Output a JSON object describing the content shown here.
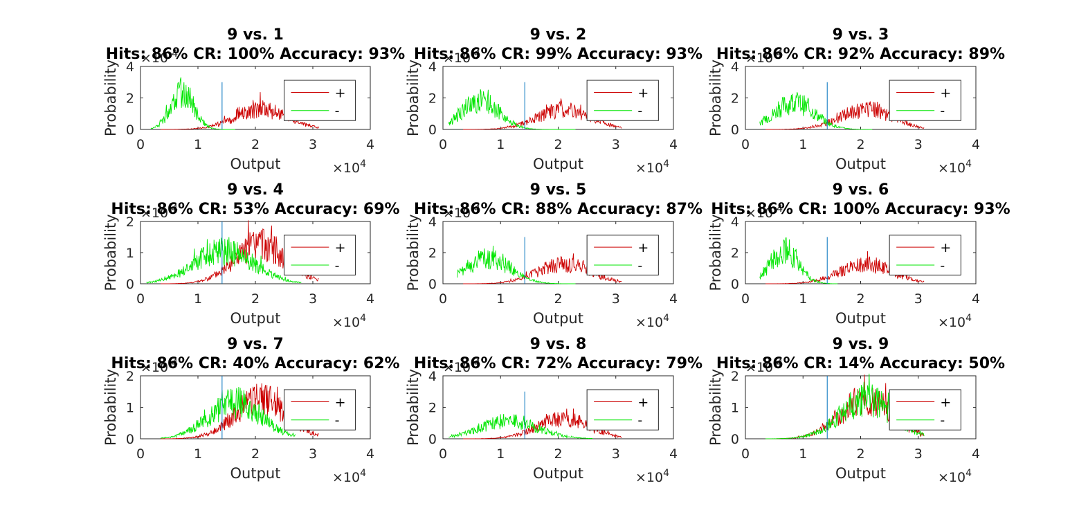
{
  "figure": {
    "background": "#ffffff",
    "axis_color": "#262626",
    "hits_color": "#cc0000",
    "cr_color": "#00e600",
    "criterion_color": "#0072bd"
  },
  "chart_data": [
    {
      "type": "line",
      "title": "9 vs. 1",
      "subtitle": "Hits: 86% CR: 100% Accuracy: 93%",
      "xlabel": "Output",
      "ylabel": "Probability",
      "x_exponent_label": "×10",
      "x_exponent": "4",
      "y_exponent_label": "×10",
      "y_exponent": "-4",
      "xlim": [
        0,
        40000
      ],
      "ylim": [
        0,
        0.0004
      ],
      "xticks": [
        "0",
        "1",
        "2",
        "3",
        "4"
      ],
      "yticks": [
        "0",
        "2",
        "4"
      ],
      "criterion": 14200,
      "criterion_top": 0.0003,
      "legend": {
        "position": "top-right",
        "entries": [
          "+",
          "-"
        ]
      },
      "series": [
        {
          "name": "+",
          "center": 21000,
          "sigma": 4600,
          "peak": 0.000125,
          "xmin": 3500,
          "xmax": 31000,
          "seed": 11
        },
        {
          "name": "-",
          "center": 7300,
          "sigma": 2000,
          "peak": 0.000235,
          "xmin": 1800,
          "xmax": 16500,
          "seed": 12
        }
      ]
    },
    {
      "type": "line",
      "title": "9 vs. 2",
      "subtitle": "Hits: 86% CR: 99% Accuracy: 93%",
      "xlabel": "Output",
      "ylabel": "Probability",
      "x_exponent_label": "×10",
      "x_exponent": "4",
      "y_exponent_label": "×10",
      "y_exponent": "-4",
      "xlim": [
        0,
        40000
      ],
      "ylim": [
        0,
        0.0004
      ],
      "xticks": [
        "0",
        "1",
        "2",
        "3",
        "4"
      ],
      "yticks": [
        "0",
        "2",
        "4"
      ],
      "criterion": 14200,
      "criterion_top": 0.0003,
      "legend": {
        "position": "top-right",
        "entries": [
          "+",
          "-"
        ]
      },
      "series": [
        {
          "name": "+",
          "center": 21000,
          "sigma": 4600,
          "peak": 0.000125,
          "xmin": 3500,
          "xmax": 31000,
          "seed": 21
        },
        {
          "name": "-",
          "center": 6500,
          "sigma": 3200,
          "peak": 0.00018,
          "xmin": 1000,
          "xmax": 23000,
          "seed": 22
        }
      ]
    },
    {
      "type": "line",
      "title": "9 vs. 3",
      "subtitle": "Hits: 86% CR: 92% Accuracy: 89%",
      "xlabel": "Output",
      "ylabel": "Probability",
      "x_exponent_label": "×10",
      "x_exponent": "4",
      "y_exponent_label": "×10",
      "y_exponent": "-4",
      "xlim": [
        0,
        40000
      ],
      "ylim": [
        0,
        0.0004
      ],
      "xticks": [
        "0",
        "1",
        "2",
        "3",
        "4"
      ],
      "yticks": [
        "0",
        "2",
        "4"
      ],
      "criterion": 14200,
      "criterion_top": 0.0003,
      "legend": {
        "position": "top-right",
        "entries": [
          "+",
          "-"
        ]
      },
      "series": [
        {
          "name": "+",
          "center": 21000,
          "sigma": 4600,
          "peak": 0.000125,
          "xmin": 3500,
          "xmax": 31000,
          "seed": 31
        },
        {
          "name": "-",
          "center": 8500,
          "sigma": 3500,
          "peak": 0.00017,
          "xmin": 2500,
          "xmax": 22000,
          "seed": 32
        }
      ]
    },
    {
      "type": "line",
      "title": "9 vs. 4",
      "subtitle": "Hits: 86% CR: 53% Accuracy: 69%",
      "xlabel": "Output",
      "ylabel": "Probability",
      "x_exponent_label": "×10",
      "x_exponent": "4",
      "y_exponent_label": "×10",
      "y_exponent": "-4",
      "xlim": [
        0,
        40000
      ],
      "ylim": [
        0,
        0.0002
      ],
      "xticks": [
        "0",
        "1",
        "2",
        "3",
        "4"
      ],
      "yticks": [
        "0",
        "1",
        "2"
      ],
      "criterion": 14200,
      "criterion_top": 0.0002,
      "legend": {
        "position": "top-right",
        "entries": [
          "+",
          "-"
        ]
      },
      "series": [
        {
          "name": "+",
          "center": 21000,
          "sigma": 4600,
          "peak": 0.000125,
          "xmin": 3500,
          "xmax": 31000,
          "seed": 41
        },
        {
          "name": "-",
          "center": 14500,
          "sigma": 5200,
          "peak": 0.000105,
          "xmin": 1000,
          "xmax": 28000,
          "seed": 42
        }
      ]
    },
    {
      "type": "line",
      "title": "9 vs. 5",
      "subtitle": "Hits: 86% CR: 88% Accuracy: 87%",
      "xlabel": "Output",
      "ylabel": "Probability",
      "x_exponent_label": "×10",
      "x_exponent": "4",
      "y_exponent_label": "×10",
      "y_exponent": "-4",
      "xlim": [
        0,
        40000
      ],
      "ylim": [
        0,
        0.0004
      ],
      "xticks": [
        "0",
        "1",
        "2",
        "3",
        "4"
      ],
      "yticks": [
        "0",
        "2",
        "4"
      ],
      "criterion": 14200,
      "criterion_top": 0.0003,
      "legend": {
        "position": "top-right",
        "entries": [
          "+",
          "-"
        ]
      },
      "series": [
        {
          "name": "+",
          "center": 21000,
          "sigma": 4600,
          "peak": 0.000125,
          "xmin": 3500,
          "xmax": 31000,
          "seed": 51
        },
        {
          "name": "-",
          "center": 8000,
          "sigma": 3800,
          "peak": 0.00016,
          "xmin": 2500,
          "xmax": 23000,
          "seed": 52
        }
      ]
    },
    {
      "type": "line",
      "title": "9 vs. 6",
      "subtitle": "Hits: 86% CR: 100% Accuracy: 93%",
      "xlabel": "Output",
      "ylabel": "Probability",
      "x_exponent_label": "×10",
      "x_exponent": "4",
      "y_exponent_label": "×10",
      "y_exponent": "-4",
      "xlim": [
        0,
        40000
      ],
      "ylim": [
        0,
        0.0004
      ],
      "xticks": [
        "0",
        "1",
        "2",
        "3",
        "4"
      ],
      "yticks": [
        "0",
        "2",
        "4"
      ],
      "criterion": 14200,
      "criterion_top": 0.0003,
      "legend": {
        "position": "top-right",
        "entries": [
          "+",
          "-"
        ]
      },
      "series": [
        {
          "name": "+",
          "center": 21000,
          "sigma": 4600,
          "peak": 0.000125,
          "xmin": 3500,
          "xmax": 31000,
          "seed": 61
        },
        {
          "name": "-",
          "center": 6800,
          "sigma": 2400,
          "peak": 0.00022,
          "xmin": 2500,
          "xmax": 16000,
          "seed": 62
        }
      ]
    },
    {
      "type": "line",
      "title": "9 vs. 7",
      "subtitle": "Hits: 86% CR: 40% Accuracy: 62%",
      "xlabel": "Output",
      "ylabel": "Probability",
      "x_exponent_label": "×10",
      "x_exponent": "4",
      "y_exponent_label": "×10",
      "y_exponent": "-4",
      "xlim": [
        0,
        40000
      ],
      "ylim": [
        0,
        0.0002
      ],
      "xticks": [
        "0",
        "1",
        "2",
        "3",
        "4"
      ],
      "yticks": [
        "0",
        "1",
        "2"
      ],
      "criterion": 14200,
      "criterion_top": 0.0002,
      "legend": {
        "position": "top-right",
        "entries": [
          "+",
          "-"
        ]
      },
      "series": [
        {
          "name": "+",
          "center": 21000,
          "sigma": 4600,
          "peak": 0.000125,
          "xmin": 3500,
          "xmax": 31000,
          "seed": 71
        },
        {
          "name": "-",
          "center": 16500,
          "sigma": 4600,
          "peak": 0.000115,
          "xmin": 3500,
          "xmax": 27000,
          "seed": 72
        }
      ]
    },
    {
      "type": "line",
      "title": "9 vs. 8",
      "subtitle": "Hits: 86% CR: 72% Accuracy: 79%",
      "xlabel": "Output",
      "ylabel": "Probability",
      "x_exponent_label": "×10",
      "x_exponent": "4",
      "y_exponent_label": "×10",
      "y_exponent": "-4",
      "xlim": [
        0,
        40000
      ],
      "ylim": [
        0,
        0.0004
      ],
      "xticks": [
        "0",
        "1",
        "2",
        "3",
        "4"
      ],
      "yticks": [
        "0",
        "2",
        "4"
      ],
      "criterion": 14200,
      "criterion_top": 0.0003,
      "legend": {
        "position": "top-right",
        "entries": [
          "+",
          "-"
        ]
      },
      "series": [
        {
          "name": "+",
          "center": 21000,
          "sigma": 4600,
          "peak": 0.000125,
          "xmin": 3500,
          "xmax": 31000,
          "seed": 81
        },
        {
          "name": "-",
          "center": 11500,
          "sigma": 5000,
          "peak": 0.00011,
          "xmin": 1000,
          "xmax": 26000,
          "seed": 82
        }
      ]
    },
    {
      "type": "line",
      "title": "9 vs. 9",
      "subtitle": "Hits: 86% CR: 14% Accuracy: 50%",
      "xlabel": "Output",
      "ylabel": "Probability",
      "x_exponent_label": "×10",
      "x_exponent": "4",
      "y_exponent_label": "×10",
      "y_exponent": "-4",
      "xlim": [
        0,
        40000
      ],
      "ylim": [
        0,
        0.0002
      ],
      "xticks": [
        "0",
        "1",
        "2",
        "3",
        "4"
      ],
      "yticks": [
        "0",
        "1",
        "2"
      ],
      "criterion": 14200,
      "criterion_top": 0.0002,
      "legend": {
        "position": "top-right",
        "entries": [
          "+",
          "-"
        ]
      },
      "series": [
        {
          "name": "+",
          "center": 21000,
          "sigma": 4600,
          "peak": 0.000125,
          "xmin": 3500,
          "xmax": 31000,
          "seed": 91
        },
        {
          "name": "-",
          "center": 21000,
          "sigma": 4600,
          "peak": 0.000125,
          "xmin": 3500,
          "xmax": 31000,
          "seed": 92
        }
      ]
    }
  ]
}
